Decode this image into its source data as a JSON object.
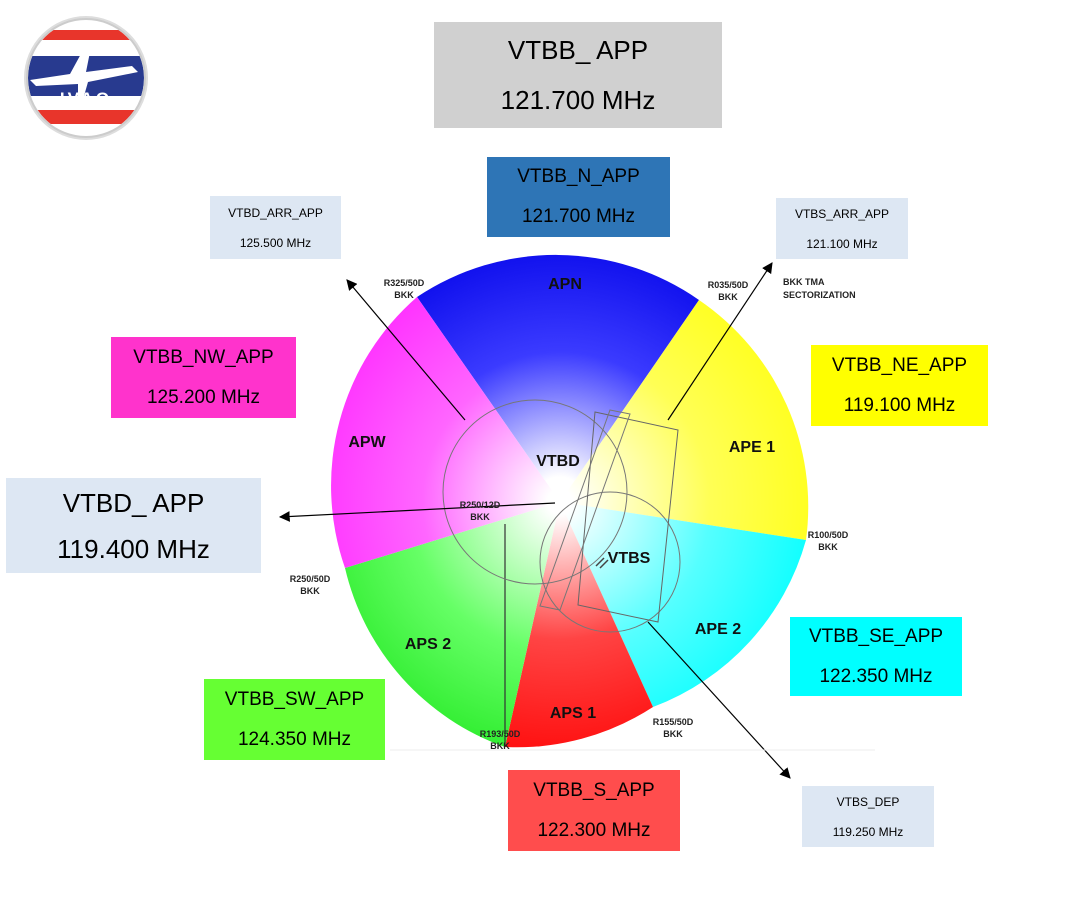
{
  "logo": {
    "text": "IVAO"
  },
  "main_box": {
    "callsign": "VTBB_ APP",
    "freq": "121.700 MHz",
    "color": "#d0d0d0"
  },
  "boxes": {
    "n": {
      "callsign": "VTBB_N_APP",
      "freq": "121.700 MHz",
      "color": "#2e75b6"
    },
    "nw": {
      "callsign": "VTBB_NW_APP",
      "freq": "125.200 MHz",
      "color": "#ff33cc"
    },
    "ne": {
      "callsign": "VTBB_NE_APP",
      "freq": "119.100 MHz",
      "color": "#ffff00"
    },
    "se": {
      "callsign": "VTBB_SE_APP",
      "freq": "122.350 MHz",
      "color": "#00ffff"
    },
    "sw": {
      "callsign": "VTBB_SW_APP",
      "freq": "124.350 MHz",
      "color": "#66ff33"
    },
    "s": {
      "callsign": "VTBB_S_APP",
      "freq": "122.300 MHz",
      "color": "#ff4d4d"
    },
    "vtbd": {
      "callsign": "VTBD_ APP",
      "freq": "119.400 MHz",
      "color": "#dde7f3"
    },
    "vtbd_arr": {
      "callsign": "VTBD_ARR_APP",
      "freq": "125.500 MHz",
      "color": "#dde7f3"
    },
    "vtbs_arr": {
      "callsign": "VTBS_ARR_APP",
      "freq": "121.100 MHz",
      "color": "#dde7f3"
    },
    "vtbs_dep": {
      "callsign": "VTBS_DEP",
      "freq": "119.250 MHz",
      "color": "#dde7f3"
    }
  },
  "sectors": {
    "apn": "APN",
    "ape1": "APE 1",
    "ape2": "APE 2",
    "aps1": "APS 1",
    "aps2": "APS 2",
    "apw": "APW",
    "vtbd": "VTBD",
    "vtbs": "VTBS"
  },
  "radials": {
    "r325": [
      "R325/50D",
      "BKK"
    ],
    "r035": [
      "R035/50D",
      "BKK"
    ],
    "r100": [
      "R100/50D",
      "BKK"
    ],
    "r155": [
      "R155/50D",
      "BKK"
    ],
    "r193": [
      "R193/50D",
      "BKK"
    ],
    "r250": [
      "R250/50D",
      "BKK"
    ],
    "r250_12": [
      "R250/12D",
      "BKK"
    ]
  },
  "tma_title": [
    "BKK TMA",
    "SECTORIZATION"
  ]
}
